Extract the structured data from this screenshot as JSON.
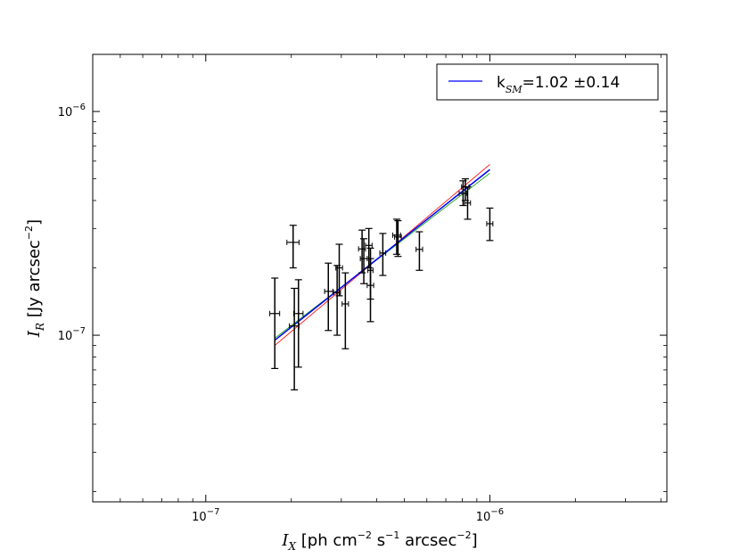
{
  "chart_data": {
    "type": "scatter",
    "x_scale": "log",
    "y_scale": "log",
    "xlim": [
      4e-08,
      4.2e-06
    ],
    "ylim": [
      1.8e-08,
      1.8e-06
    ],
    "xlabel": {
      "main": "I",
      "sub": "X",
      "text1": " [ph cm",
      "sup1": "−2",
      "text2": " s",
      "sup2": "−1",
      "text3": " arcsec",
      "sup3": "−2",
      "text4": "]"
    },
    "ylabel": {
      "main": "I",
      "sub": "R",
      "text1": " [Jy arcsec",
      "sup1": "−2",
      "text2": "]"
    },
    "x_ticks": [
      {
        "value": 1e-07,
        "base": "10",
        "exp": "−7"
      },
      {
        "value": 1e-06,
        "base": "10",
        "exp": "−6"
      }
    ],
    "y_ticks": [
      {
        "value": 1e-07,
        "base": "10",
        "exp": "−7"
      },
      {
        "value": 1e-06,
        "base": "10",
        "exp": "−6"
      }
    ],
    "grid": false,
    "legend": {
      "placement": "top-right",
      "entries": [
        {
          "color": "#0000ff",
          "prefix": "k",
          "sub": "SM",
          "suffix": "=1.02 ±0.14"
        }
      ]
    },
    "fit_lines": [
      {
        "color": "#ff0000",
        "x": [
          1.75e-07,
          1e-06
        ],
        "y": [
          9e-08,
          5.8e-07
        ]
      },
      {
        "color": "#00a000",
        "x": [
          1.75e-07,
          1e-06
        ],
        "y": [
          9.7e-08,
          5.3e-07
        ]
      },
      {
        "color": "#0000ff",
        "x": [
          1.75e-07,
          1e-06
        ],
        "y": [
          9.5e-08,
          5.5e-07
        ]
      }
    ],
    "points": [
      {
        "x": 1.75e-07,
        "y": 1.25e-07,
        "xerr": [
          1.68e-07,
          1.82e-07
        ],
        "yerr": [
          7.1e-08,
          1.8e-07
        ]
      },
      {
        "x": 2.03e-07,
        "y": 2.6e-07,
        "xerr": [
          1.93e-07,
          2.13e-07
        ],
        "yerr": [
          2e-07,
          3.1e-07
        ]
      },
      {
        "x": 2.05e-07,
        "y": 1.1e-07,
        "xerr": [
          1.97e-07,
          2.13e-07
        ],
        "yerr": [
          5.7e-08,
          1.62e-07
        ]
      },
      {
        "x": 2.12e-07,
        "y": 1.25e-07,
        "xerr": [
          2.04e-07,
          2.2e-07
        ],
        "yerr": [
          7.2e-08,
          1.77e-07
        ]
      },
      {
        "x": 2.7e-07,
        "y": 1.57e-07,
        "xerr": [
          2.62e-07,
          2.8e-07
        ],
        "yerr": [
          1.05e-07,
          2.1e-07
        ]
      },
      {
        "x": 2.9e-07,
        "y": 1.55e-07,
        "xerr": [
          2.82e-07,
          2.98e-07
        ],
        "yerr": [
          1e-07,
          2.05e-07
        ]
      },
      {
        "x": 2.95e-07,
        "y": 2e-07,
        "xerr": [
          2.87e-07,
          3.03e-07
        ],
        "yerr": [
          1.5e-07,
          2.55e-07
        ]
      },
      {
        "x": 3.1e-07,
        "y": 1.38e-07,
        "xerr": [
          3.02e-07,
          3.18e-07
        ],
        "yerr": [
          8.7e-08,
          1.9e-07
        ]
      },
      {
        "x": 3.55e-07,
        "y": 2.43e-07,
        "xerr": [
          3.45e-07,
          3.65e-07
        ],
        "yerr": [
          1.9e-07,
          2.95e-07
        ]
      },
      {
        "x": 3.6e-07,
        "y": 2.2e-07,
        "xerr": [
          3.5e-07,
          3.7e-07
        ],
        "yerr": [
          1.7e-07,
          2.7e-07
        ]
      },
      {
        "x": 3.75e-07,
        "y": 2.52e-07,
        "xerr": [
          3.65e-07,
          3.85e-07
        ],
        "yerr": [
          2e-07,
          3e-07
        ]
      },
      {
        "x": 3.8e-07,
        "y": 1.67e-07,
        "xerr": [
          3.7e-07,
          3.9e-07
        ],
        "yerr": [
          1.15e-07,
          2.2e-07
        ]
      },
      {
        "x": 3.8e-07,
        "y": 1.95e-07,
        "xerr": [
          3.72e-07,
          3.88e-07
        ],
        "yerr": [
          1.45e-07,
          2.45e-07
        ]
      },
      {
        "x": 4.2e-07,
        "y": 2.33e-07,
        "xerr": [
          4.1e-07,
          4.3e-07
        ],
        "yerr": [
          1.85e-07,
          2.85e-07
        ]
      },
      {
        "x": 4.7e-07,
        "y": 2.8e-07,
        "xerr": [
          4.55e-07,
          4.85e-07
        ],
        "yerr": [
          2.3e-07,
          3.3e-07
        ]
      },
      {
        "x": 4.75e-07,
        "y": 2.75e-07,
        "xerr": [
          4.62e-07,
          4.88e-07
        ],
        "yerr": [
          2.25e-07,
          3.25e-07
        ]
      },
      {
        "x": 5.65e-07,
        "y": 2.42e-07,
        "xerr": [
          5.5e-07,
          5.8e-07
        ],
        "yerr": [
          1.95e-07,
          2.9e-07
        ]
      },
      {
        "x": 8.05e-07,
        "y": 4.3e-07,
        "xerr": [
          7.8e-07,
          8.3e-07
        ],
        "yerr": [
          3.8e-07,
          4.9e-07
        ]
      },
      {
        "x": 8.2e-07,
        "y": 4.6e-07,
        "xerr": [
          7.95e-07,
          8.45e-07
        ],
        "yerr": [
          4e-07,
          5e-07
        ]
      },
      {
        "x": 8.35e-07,
        "y": 3.9e-07,
        "xerr": [
          8.15e-07,
          8.55e-07
        ],
        "yerr": [
          3.3e-07,
          4.6e-07
        ]
      },
      {
        "x": 1e-06,
        "y": 3.15e-07,
        "xerr": [
          9.75e-07,
          1.025e-06
        ],
        "yerr": [
          2.65e-07,
          3.7e-07
        ]
      }
    ]
  }
}
